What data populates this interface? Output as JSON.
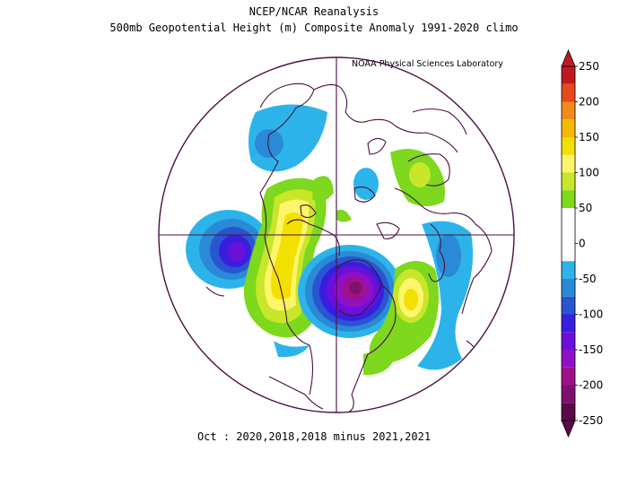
{
  "header": {
    "title_line1": "NCEP/NCAR Reanalysis",
    "title_line2": "500mb Geopotential Height (m) Composite Anomaly 1991-2020 climo",
    "credit": "NOAA Physical Sciences Laboratory"
  },
  "footer": {
    "caption": "Oct : 2020,2018,2018 minus 2021,2021"
  },
  "map": {
    "projection": "north-polar-stereographic",
    "field": "500mb geopotential height anomaly",
    "units": "m"
  },
  "colorbar": {
    "ticks": [
      "250",
      "200",
      "150",
      "100",
      "50",
      "0",
      "-50",
      "-100",
      "-150",
      "-200",
      "-250"
    ],
    "bins": [
      {
        "from": 225,
        "to": 250,
        "color": "#c01a20"
      },
      {
        "from": 200,
        "to": 225,
        "color": "#e8481e"
      },
      {
        "from": 175,
        "to": 200,
        "color": "#f28a1a"
      },
      {
        "from": 150,
        "to": 175,
        "color": "#f5b800"
      },
      {
        "from": 125,
        "to": 150,
        "color": "#f2e000"
      },
      {
        "from": 100,
        "to": 125,
        "color": "#fff56a"
      },
      {
        "from": 75,
        "to": 100,
        "color": "#c8e62a"
      },
      {
        "from": 50,
        "to": 75,
        "color": "#7dd81e"
      },
      {
        "from": 25,
        "to": 50,
        "color": "#ffffff"
      },
      {
        "from": -25,
        "to": 25,
        "color": "#ffffff"
      },
      {
        "from": -50,
        "to": -25,
        "color": "#2cb4ea"
      },
      {
        "from": -75,
        "to": -50,
        "color": "#2a8ad6"
      },
      {
        "from": -100,
        "to": -75,
        "color": "#2a55d0"
      },
      {
        "from": -125,
        "to": -100,
        "color": "#3a1ee0"
      },
      {
        "from": -150,
        "to": -125,
        "color": "#6a10d8"
      },
      {
        "from": -175,
        "to": -150,
        "color": "#9010c8"
      },
      {
        "from": -200,
        "to": -175,
        "color": "#a0108c"
      },
      {
        "from": -225,
        "to": -200,
        "color": "#80106e"
      },
      {
        "from": -250,
        "to": -225,
        "color": "#5a0a4a"
      }
    ]
  }
}
